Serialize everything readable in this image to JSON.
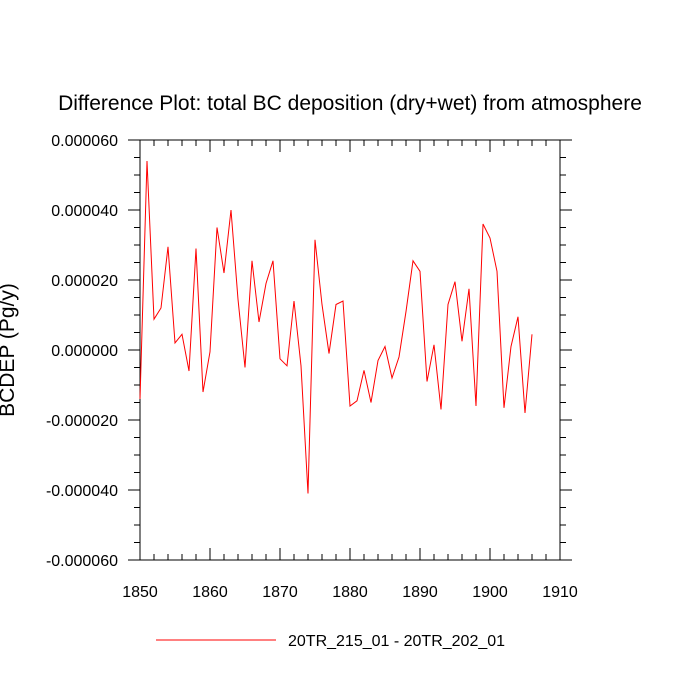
{
  "chart_data": {
    "type": "line",
    "title": "Difference Plot: total BC deposition (dry+wet) from atmosphere",
    "ylabel": "BCDEP (Pg/y)",
    "xlabel": "",
    "xlim": [
      1850,
      1910
    ],
    "ylim": [
      -6e-05,
      6e-05
    ],
    "x_ticks": [
      1850,
      1860,
      1870,
      1880,
      1890,
      1900,
      1910
    ],
    "x_tick_labels": [
      "1850",
      "1860",
      "1870",
      "1880",
      "1890",
      "1900",
      "1910"
    ],
    "y_ticks": [
      -6e-05,
      -4e-05,
      -2e-05,
      0,
      2e-05,
      4e-05,
      6e-05
    ],
    "y_tick_labels": [
      "-0.000060",
      "-0.000040",
      "-0.000020",
      "0.000000",
      "0.000020",
      "0.000040",
      "0.000060"
    ],
    "grid": false,
    "legend_position": "bottom-center",
    "series": [
      {
        "name": "20TR_215_01 - 20TR_202_01",
        "color": "#ff0000",
        "x": [
          1850,
          1851,
          1852,
          1853,
          1854,
          1855,
          1856,
          1857,
          1858,
          1859,
          1860,
          1861,
          1862,
          1863,
          1864,
          1865,
          1866,
          1867,
          1868,
          1869,
          1870,
          1871,
          1872,
          1873,
          1874,
          1875,
          1876,
          1877,
          1878,
          1879,
          1880,
          1881,
          1882,
          1883,
          1884,
          1885,
          1886,
          1887,
          1888,
          1889,
          1890,
          1891,
          1892,
          1893,
          1894,
          1895,
          1896,
          1897,
          1898,
          1899,
          1900,
          1901,
          1902,
          1903,
          1904,
          1905,
          1906
        ],
        "values": [
          -1.4e-05,
          5.4e-05,
          8.8e-06,
          1.2e-05,
          2.95e-05,
          2e-06,
          4.5e-06,
          -6e-06,
          2.9e-05,
          -1.2e-05,
          -5e-07,
          3.5e-05,
          2.2e-05,
          4e-05,
          1.45e-05,
          -5e-06,
          2.55e-05,
          8e-06,
          1.9e-05,
          2.55e-05,
          -2.5e-06,
          -4.5e-06,
          1.4e-05,
          -4.5e-06,
          -4.1e-05,
          3.15e-05,
          1.3e-05,
          -1e-06,
          1.3e-05,
          1.4e-05,
          -1.6e-05,
          -1.45e-05,
          -5.8e-06,
          -1.5e-05,
          -3e-06,
          1e-06,
          -8e-06,
          -2e-06,
          1.1e-05,
          2.55e-05,
          2.25e-05,
          -9e-06,
          1.5e-06,
          -1.7e-05,
          1.3e-05,
          1.95e-05,
          2.5e-06,
          1.75e-05,
          -1.6e-05,
          3.6e-05,
          3.2e-05,
          2.25e-05,
          -1.65e-05,
          1e-06,
          9.5e-06,
          -1.8e-05,
          4.5e-06
        ]
      }
    ]
  }
}
